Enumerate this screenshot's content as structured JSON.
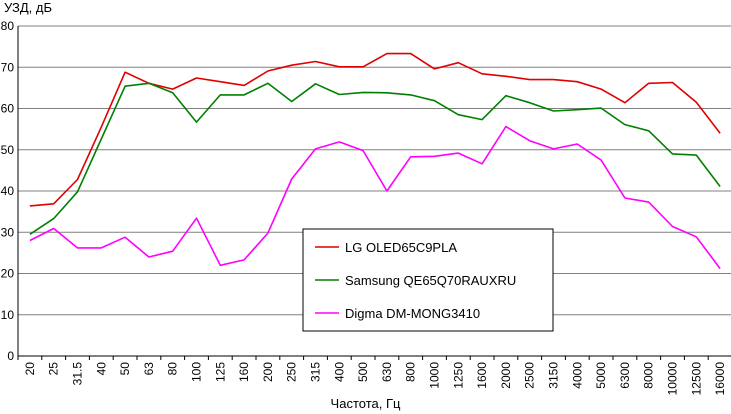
{
  "chart_data": {
    "type": "line",
    "ylabel": "УЗД, дБ",
    "xlabel": "Частота, Гц",
    "ylim": [
      0,
      80
    ],
    "yticks": [
      0,
      10,
      20,
      30,
      40,
      50,
      60,
      70,
      80
    ],
    "grid": "horizontal",
    "legend_position": "bottom-left-center",
    "categories": [
      "20",
      "25",
      "31.5",
      "40",
      "50",
      "63",
      "80",
      "100",
      "125",
      "160",
      "200",
      "250",
      "315",
      "400",
      "500",
      "630",
      "800",
      "1000",
      "1250",
      "1600",
      "2000",
      "2500",
      "3150",
      "4000",
      "5000",
      "6300",
      "8000",
      "10000",
      "12500",
      "16000"
    ],
    "series": [
      {
        "name": "LG OLED65C9PLA",
        "color": "#e00000",
        "values": [
          36.4,
          36.9,
          42.8,
          55.5,
          68.8,
          66.1,
          64.7,
          67.4,
          66.5,
          65.6,
          69.1,
          70.5,
          71.4,
          70.1,
          70.1,
          73.3,
          73.3,
          69.6,
          71.1,
          68.4,
          67.8,
          67.0,
          67.0,
          66.5,
          64.7,
          61.4,
          66.1,
          66.3,
          61.5,
          54.0
        ]
      },
      {
        "name": "Samsung QE65Q70RAUXRU",
        "color": "#008000",
        "values": [
          29.5,
          33.3,
          39.8,
          52.6,
          65.4,
          66.1,
          63.8,
          56.7,
          63.3,
          63.3,
          66.1,
          61.7,
          66.0,
          63.4,
          63.9,
          63.8,
          63.3,
          61.9,
          58.5,
          57.3,
          63.1,
          61.4,
          59.4,
          59.7,
          60.1,
          56.1,
          54.6,
          49.0,
          48.7,
          41.1
        ]
      },
      {
        "name": "Digma DM-MONG3410",
        "color": "#ff00ff",
        "values": [
          28.0,
          30.9,
          26.2,
          26.2,
          28.8,
          24.0,
          25.4,
          33.4,
          22.0,
          23.3,
          29.8,
          42.9,
          50.2,
          51.9,
          49.8,
          40.0,
          48.3,
          48.4,
          49.2,
          46.6,
          55.6,
          52.2,
          50.2,
          51.4,
          47.5,
          38.3,
          37.3,
          31.4,
          28.9,
          21.2
        ]
      }
    ]
  }
}
